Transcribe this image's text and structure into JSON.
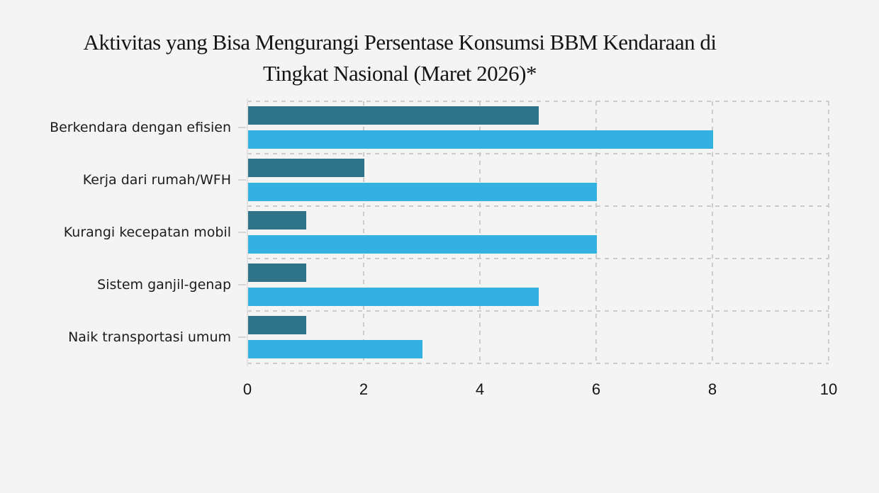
{
  "title_lines": [
    "Aktivitas yang Bisa Mengurangi Persentase Konsumsi BBM Kendaraan di",
    "Tingkat Nasional (Maret 2026)*"
  ],
  "chart_data": {
    "type": "bar",
    "orientation": "horizontal",
    "title": "Aktivitas yang Bisa Mengurangi Persentase Konsumsi BBM Kendaraan di Tingkat Nasional (Maret 2026)*",
    "categories": [
      "Berkendara dengan efisien",
      "Kerja dari rumah/WFH",
      "Kurangi kecepatan mobil",
      "Sistem ganjil-genap",
      "Naik transportasi umum"
    ],
    "series": [
      {
        "id": "dark-teal",
        "color": "#2f7389",
        "values": [
          5,
          2,
          1,
          1,
          1
        ]
      },
      {
        "id": "light-blue",
        "color": "#33b2e2",
        "values": [
          8,
          6,
          6,
          5,
          3
        ]
      }
    ],
    "x_ticks": [
      "0",
      "2",
      "4",
      "6",
      "8",
      "10"
    ],
    "x_tick_values": [
      0,
      2,
      4,
      6,
      8,
      10
    ],
    "xlim": [
      0,
      10
    ],
    "xlabel": "",
    "ylabel": "",
    "grid": {
      "vertical_gridlines": "dashed",
      "category_boundaries": "dashed"
    },
    "legend_position": "none"
  },
  "colors": {
    "background": "#f4f4f5",
    "grid_dash": "#cbcbcc",
    "axis_line": "#e1e1e2",
    "tick_mark": "#d5d5d6",
    "title_text": "#151515",
    "label_text": "#1c1c1c"
  }
}
